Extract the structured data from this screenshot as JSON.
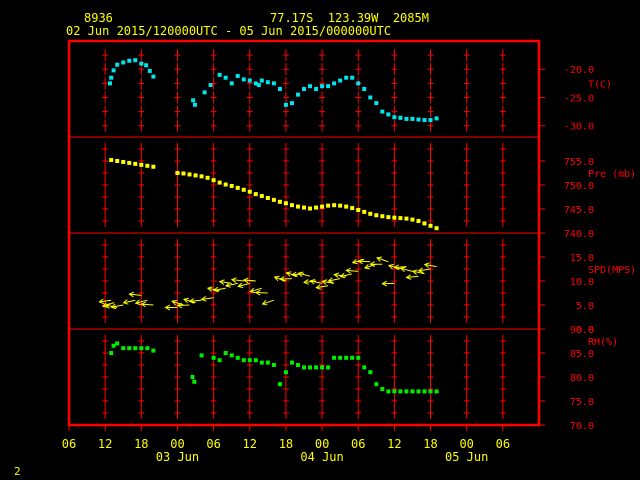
{
  "header": {
    "station_id": "8936",
    "location": "77.17S  123.39W  2085M",
    "time_range": "02 Jun 2015/120000UTC - 05 Jun 2015/000000UTC"
  },
  "footer": {
    "page_marker": "2"
  },
  "colors": {
    "background": "#000000",
    "frame": "#ff0000",
    "grid": "#ff0000",
    "text": "#ffff00",
    "axis_labels": "#ff0000",
    "temperature": "#00e5ee",
    "pressure": "#ffff00",
    "wind": "#ffff00",
    "humidity": "#00ee00"
  },
  "chart_data": {
    "type": "scatter",
    "x_unit": "hours since 02 Jun 2015 06 UTC",
    "x_range": [
      0,
      78
    ],
    "x_tick_labels": [
      "06",
      "12",
      "18",
      "00",
      "06",
      "12",
      "18",
      "00",
      "06",
      "12",
      "18",
      "00",
      "06"
    ],
    "date_labels": [
      {
        "hour": 18,
        "label": "03 Jun"
      },
      {
        "hour": 42,
        "label": "04 Jun"
      },
      {
        "hour": 66,
        "label": "05 Jun"
      }
    ],
    "panels": [
      {
        "name": "T(C)",
        "ylim": [
          -32,
          -15
        ],
        "ticks": [
          {
            "v": -20,
            "label": "-20.0"
          },
          {
            "v": -25,
            "label": "-25.0"
          },
          {
            "v": -30,
            "label": "-30.0"
          }
        ],
        "grid_cross_values": [
          -17.5,
          -20,
          -22.5,
          -25,
          -27.5,
          -30
        ],
        "series": [
          {
            "marker": "square",
            "points": [
              [
                6.8,
                -22.5
              ],
              [
                7,
                -21.5
              ],
              [
                7.4,
                -20.2
              ],
              [
                8,
                -19.2
              ],
              [
                9,
                -18.8
              ],
              [
                10,
                -18.5
              ],
              [
                11,
                -18.4
              ],
              [
                12,
                -19
              ],
              [
                12.8,
                -19.3
              ],
              [
                13.4,
                -20.3
              ],
              [
                14,
                -21.3
              ],
              [
                20.6,
                -25.5
              ],
              [
                20.9,
                -26.3
              ],
              [
                22.5,
                -24.1
              ],
              [
                23.5,
                -22.8
              ],
              [
                25,
                -21
              ],
              [
                26,
                -21.5
              ],
              [
                27,
                -22.5
              ],
              [
                28,
                -21.2
              ],
              [
                29,
                -21.8
              ],
              [
                30,
                -22
              ],
              [
                31,
                -22.5
              ],
              [
                31.5,
                -22.8
              ],
              [
                32,
                -22
              ],
              [
                33,
                -22.3
              ],
              [
                34,
                -22.5
              ],
              [
                35,
                -23.5
              ],
              [
                36,
                -26.3
              ],
              [
                37,
                -26
              ],
              [
                38,
                -24.5
              ],
              [
                39,
                -23.5
              ],
              [
                40,
                -23
              ],
              [
                41,
                -23.5
              ],
              [
                42,
                -23
              ],
              [
                43,
                -23
              ],
              [
                44,
                -22.5
              ],
              [
                45,
                -22
              ],
              [
                46,
                -21.5
              ],
              [
                47,
                -21.5
              ],
              [
                48,
                -22.5
              ],
              [
                49,
                -23.5
              ],
              [
                50,
                -25
              ],
              [
                51,
                -26
              ],
              [
                52,
                -27.5
              ],
              [
                53,
                -28
              ],
              [
                54,
                -28.5
              ],
              [
                55,
                -28.6
              ],
              [
                56,
                -28.8
              ],
              [
                57,
                -28.8
              ],
              [
                58,
                -28.9
              ],
              [
                59,
                -29
              ],
              [
                60,
                -29
              ],
              [
                61,
                -28.7
              ]
            ]
          }
        ]
      },
      {
        "name": "Pre (mb)",
        "ylim": [
          740,
          760
        ],
        "ticks": [
          {
            "v": 755,
            "label": "755.0"
          },
          {
            "v": 750,
            "label": "750.0"
          },
          {
            "v": 745,
            "label": "745.0"
          },
          {
            "v": 740,
            "label": "740.0"
          }
        ],
        "grid_cross_values": [
          757.5,
          755,
          752.5,
          750,
          747.5,
          745,
          742.5
        ],
        "series": [
          {
            "marker": "square",
            "points": [
              [
                7,
                755.2
              ],
              [
                8,
                755
              ],
              [
                9,
                754.8
              ],
              [
                10,
                754.6
              ],
              [
                11,
                754.4
              ],
              [
                12,
                754.2
              ],
              [
                13,
                754
              ],
              [
                14,
                753.8
              ],
              [
                18,
                752.5
              ],
              [
                19,
                752.4
              ],
              [
                20,
                752.2
              ],
              [
                21,
                752
              ],
              [
                22,
                751.8
              ],
              [
                23,
                751.5
              ],
              [
                24,
                751
              ],
              [
                25,
                750.5
              ],
              [
                26,
                750.1
              ],
              [
                27,
                749.8
              ],
              [
                28,
                749.4
              ],
              [
                29,
                749
              ],
              [
                30,
                748.6
              ],
              [
                31,
                748.1
              ],
              [
                32,
                747.7
              ],
              [
                33,
                747.3
              ],
              [
                34,
                746.9
              ],
              [
                35,
                746.5
              ],
              [
                36,
                746.2
              ],
              [
                37,
                745.8
              ],
              [
                38,
                745.5
              ],
              [
                39,
                745.3
              ],
              [
                40,
                745.1
              ],
              [
                41,
                745.3
              ],
              [
                42,
                745.5
              ],
              [
                43,
                745.7
              ],
              [
                44,
                745.8
              ],
              [
                45,
                745.7
              ],
              [
                46,
                745.5
              ],
              [
                47,
                745.2
              ],
              [
                48,
                744.8
              ],
              [
                49,
                744.4
              ],
              [
                50,
                744
              ],
              [
                51,
                743.7
              ],
              [
                52,
                743.5
              ],
              [
                53,
                743.3
              ],
              [
                54,
                743.2
              ],
              [
                55,
                743.1
              ],
              [
                56,
                743
              ],
              [
                57,
                742.8
              ],
              [
                58,
                742.5
              ],
              [
                59,
                742
              ],
              [
                60,
                741.5
              ],
              [
                61,
                741
              ]
            ]
          }
        ]
      },
      {
        "name": "SPD(MPS)",
        "ylim": [
          0,
          20
        ],
        "ticks": [
          {
            "v": 15,
            "label": "15.0"
          },
          {
            "v": 10,
            "label": "10.0"
          },
          {
            "v": 5,
            "label": "5.0"
          },
          {
            "v": 0,
            "label": "0.0"
          }
        ],
        "grid_cross_values": [
          17.5,
          15,
          12.5,
          10,
          7.5,
          5,
          2.5
        ],
        "series": [
          {
            "marker": "wind-arrow",
            "points": [
              [
                7,
                6
              ],
              [
                7.5,
                5.5
              ],
              [
                8,
                4.5
              ],
              [
                9,
                5
              ],
              [
                11,
                6
              ],
              [
                12,
                7
              ],
              [
                13,
                6
              ],
              [
                14,
                5
              ],
              [
                18,
                4.5
              ],
              [
                19,
                5
              ],
              [
                20,
                5
              ],
              [
                21,
                5.5
              ],
              [
                22,
                6
              ],
              [
                24,
                6.5
              ],
              [
                25,
                8
              ],
              [
                26,
                8.5
              ],
              [
                27,
                9.5
              ],
              [
                28,
                9.5
              ],
              [
                29,
                10
              ],
              [
                30,
                9.5
              ],
              [
                31,
                10
              ],
              [
                32,
                8.5
              ],
              [
                33,
                7.5
              ],
              [
                34,
                6
              ],
              [
                36,
                10
              ],
              [
                37,
                10.5
              ],
              [
                38,
                11
              ],
              [
                39,
                11.5
              ],
              [
                40,
                11
              ],
              [
                41,
                10
              ],
              [
                42,
                9.5
              ],
              [
                43,
                9
              ],
              [
                44,
                9.5
              ],
              [
                45,
                10.5
              ],
              [
                46,
                11
              ],
              [
                47,
                11.5
              ],
              [
                48,
                12
              ],
              [
                49,
                14.5
              ],
              [
                50,
                14
              ],
              [
                51,
                13.5
              ],
              [
                52,
                13.5
              ],
              [
                53,
                14
              ],
              [
                54,
                9.5
              ],
              [
                55,
                12.5
              ],
              [
                56,
                13
              ],
              [
                57,
                12
              ],
              [
                58,
                11
              ],
              [
                59,
                11.5
              ],
              [
                60,
                12.5
              ],
              [
                61,
                13
              ]
            ]
          }
        ]
      },
      {
        "name": "RH(%)",
        "ylim": [
          70,
          90
        ],
        "ticks": [
          {
            "v": 90,
            "label": "90.0"
          },
          {
            "v": 85,
            "label": "85.0"
          },
          {
            "v": 80,
            "label": "80.0"
          },
          {
            "v": 75,
            "label": "75.0"
          },
          {
            "v": 70,
            "label": "70.0"
          }
        ],
        "grid_cross_values": [
          87.5,
          85,
          82.5,
          80,
          77.5,
          75,
          72.5
        ],
        "series": [
          {
            "marker": "square",
            "points": [
              [
                7,
                85
              ],
              [
                7.4,
                86.5
              ],
              [
                8,
                87
              ],
              [
                9,
                86
              ],
              [
                10,
                86
              ],
              [
                11,
                86
              ],
              [
                12,
                86
              ],
              [
                13,
                86
              ],
              [
                14,
                85.5
              ],
              [
                20.5,
                80
              ],
              [
                20.8,
                79
              ],
              [
                22,
                84.5
              ],
              [
                24,
                84
              ],
              [
                25,
                83.5
              ],
              [
                26,
                85
              ],
              [
                27,
                84.5
              ],
              [
                28,
                84
              ],
              [
                29,
                83.5
              ],
              [
                30,
                83.5
              ],
              [
                31,
                83.5
              ],
              [
                32,
                83
              ],
              [
                33,
                83
              ],
              [
                34,
                82.5
              ],
              [
                35,
                78.5
              ],
              [
                36,
                81
              ],
              [
                37,
                83
              ],
              [
                38,
                82.5
              ],
              [
                39,
                82
              ],
              [
                40,
                82
              ],
              [
                41,
                82
              ],
              [
                42,
                82
              ],
              [
                43,
                82
              ],
              [
                44,
                84
              ],
              [
                45,
                84
              ],
              [
                46,
                84
              ],
              [
                47,
                84
              ],
              [
                48,
                84
              ],
              [
                49,
                82
              ],
              [
                50,
                81
              ],
              [
                51,
                78.5
              ],
              [
                52,
                77.5
              ],
              [
                53,
                77
              ],
              [
                54,
                77
              ],
              [
                55,
                77
              ],
              [
                56,
                77
              ],
              [
                57,
                77
              ],
              [
                58,
                77
              ],
              [
                59,
                77
              ],
              [
                60,
                77
              ],
              [
                61,
                77
              ]
            ]
          }
        ]
      }
    ]
  }
}
